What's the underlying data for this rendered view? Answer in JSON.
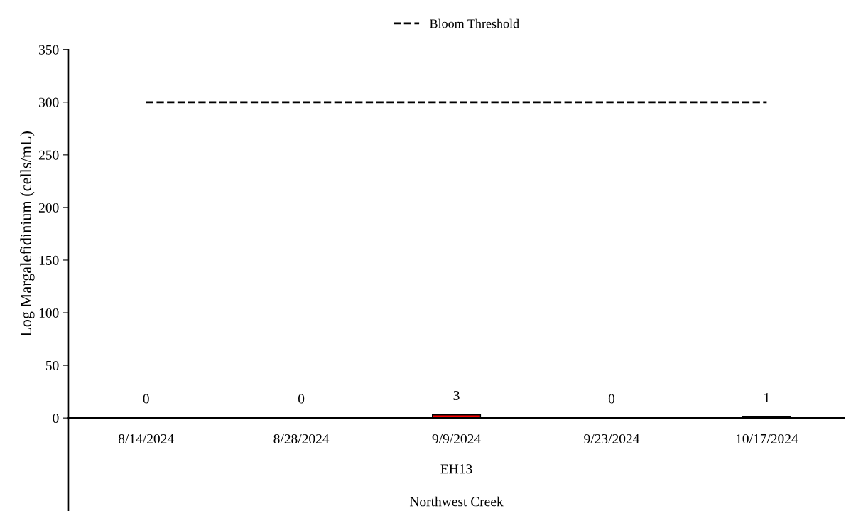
{
  "chart_data": {
    "type": "bar",
    "categories": [
      "8/14/2024",
      "8/28/2024",
      "9/9/2024",
      "9/23/2024",
      "10/17/2024"
    ],
    "values": [
      0,
      0,
      3,
      0,
      1
    ],
    "color": "#ff0000",
    "data_labels": true,
    "ylabel": "Log Margalefidinium (cells/mL)",
    "ylim": [
      0,
      350
    ],
    "yticks": [
      0,
      50,
      100,
      150,
      200,
      250,
      300,
      350
    ],
    "ref_lines": [
      {
        "axis": "y",
        "value": 300,
        "label": "Bloom Threshold",
        "color": "#000000",
        "line_style": "dashed"
      }
    ],
    "legend": "top",
    "grid": false,
    "annotations": [
      "EH13",
      "Northwest Creek"
    ]
  }
}
